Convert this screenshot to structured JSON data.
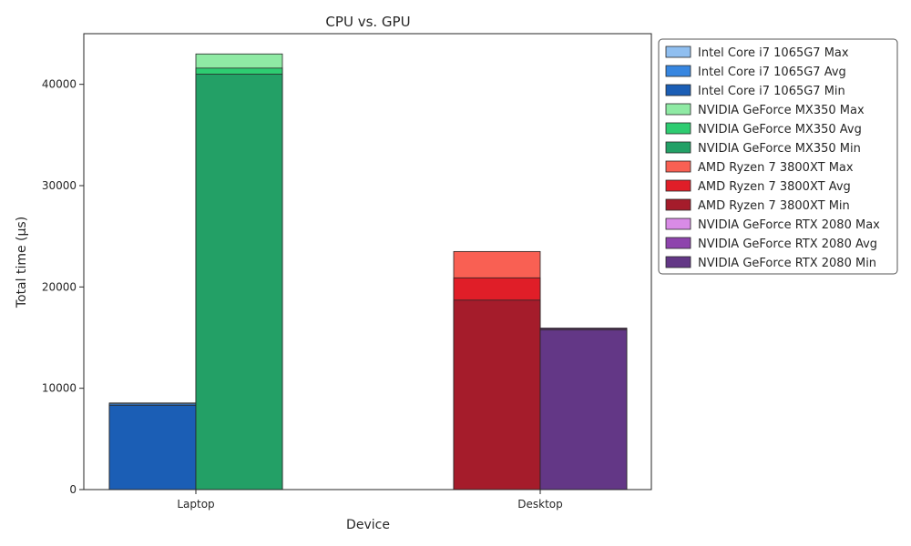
{
  "chart_data": {
    "type": "bar",
    "title": "CPU vs. GPU",
    "xlabel": "Device",
    "ylabel": "Total time (µs)",
    "categories": [
      "Laptop",
      "Desktop"
    ],
    "ylim": [
      0,
      45000
    ],
    "yticks": [
      0,
      10000,
      20000,
      30000,
      40000
    ],
    "grid": false,
    "legend_position": "outside-right",
    "groups": [
      {
        "category": "Laptop",
        "devices": [
          {
            "name": "Intel Core i7 1065G7",
            "max": 8550,
            "avg": 8450,
            "min": 8300,
            "colors": {
              "max": "#90bff0",
              "avg": "#3786e0",
              "min": "#1b5eb5"
            }
          },
          {
            "name": "NVIDIA GeForce MX350",
            "max": 43000,
            "avg": 41600,
            "min": 41000,
            "colors": {
              "max": "#8feaa4",
              "avg": "#2ecc71",
              "min": "#23a066"
            }
          }
        ]
      },
      {
        "category": "Desktop",
        "devices": [
          {
            "name": "AMD Ryzen 7 3800XT",
            "max": 23500,
            "avg": 20900,
            "min": 18700,
            "colors": {
              "max": "#f96053",
              "avg": "#e01e28",
              "min": "#a51c2b"
            }
          },
          {
            "name": "NVIDIA GeForce RTX 2080",
            "max": 15950,
            "avg": 15850,
            "min": 15750,
            "colors": {
              "max": "#d98be6",
              "avg": "#8e44ad",
              "min": "#633786"
            }
          }
        ]
      }
    ],
    "legend": [
      {
        "label": "Intel Core i7 1065G7 Max",
        "color": "#90bff0"
      },
      {
        "label": "Intel Core i7 1065G7 Avg",
        "color": "#3786e0"
      },
      {
        "label": "Intel Core i7 1065G7 Min",
        "color": "#1b5eb5"
      },
      {
        "label": "NVIDIA GeForce MX350 Max",
        "color": "#8feaa4"
      },
      {
        "label": "NVIDIA GeForce MX350 Avg",
        "color": "#2ecc71"
      },
      {
        "label": "NVIDIA GeForce MX350 Min",
        "color": "#23a066"
      },
      {
        "label": "AMD Ryzen 7 3800XT Max",
        "color": "#f96053"
      },
      {
        "label": "AMD Ryzen 7 3800XT Avg",
        "color": "#e01e28"
      },
      {
        "label": "AMD Ryzen 7 3800XT Min",
        "color": "#a51c2b"
      },
      {
        "label": "NVIDIA GeForce RTX 2080 Max",
        "color": "#d98be6"
      },
      {
        "label": "NVIDIA GeForce RTX 2080 Avg",
        "color": "#8e44ad"
      },
      {
        "label": "NVIDIA GeForce RTX 2080 Min",
        "color": "#633786"
      }
    ]
  }
}
